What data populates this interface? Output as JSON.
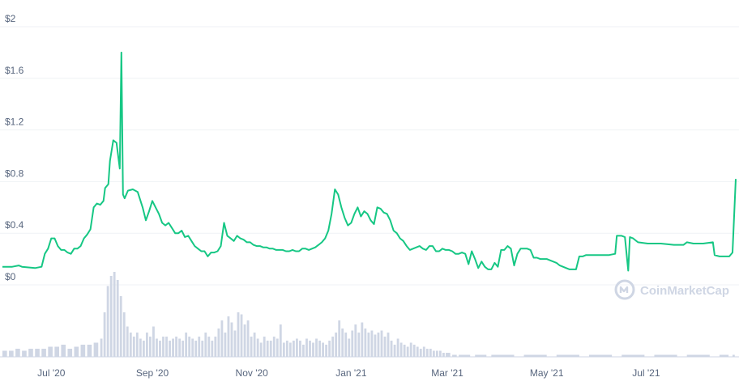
{
  "chart_data": {
    "type": "line",
    "y_ticks": [
      "$0",
      "$0.4",
      "$0.8",
      "$1.2",
      "$1.6",
      "$2"
    ],
    "ylim": [
      0,
      2
    ],
    "x_ticks": [
      {
        "label": "Jul '20",
        "day": 30
      },
      {
        "label": "Sep '20",
        "day": 92
      },
      {
        "label": "Nov '20",
        "day": 153
      },
      {
        "label": "Jan '21",
        "day": 214
      },
      {
        "label": "Mar '21",
        "day": 273
      },
      {
        "label": "May '21",
        "day": 334
      },
      {
        "label": "Jul '21",
        "day": 395
      }
    ],
    "xlim_days": [
      0,
      450
    ],
    "price_series": {
      "color": "#16c784",
      "points": [
        [
          0,
          0.14
        ],
        [
          6,
          0.14
        ],
        [
          10,
          0.15
        ],
        [
          12,
          0.14
        ],
        [
          20,
          0.13
        ],
        [
          24,
          0.14
        ],
        [
          26,
          0.24
        ],
        [
          28,
          0.28
        ],
        [
          30,
          0.36
        ],
        [
          32,
          0.36
        ],
        [
          34,
          0.3
        ],
        [
          36,
          0.27
        ],
        [
          38,
          0.27
        ],
        [
          40,
          0.25
        ],
        [
          42,
          0.24
        ],
        [
          44,
          0.28
        ],
        [
          46,
          0.28
        ],
        [
          48,
          0.3
        ],
        [
          50,
          0.36
        ],
        [
          52,
          0.39
        ],
        [
          54,
          0.43
        ],
        [
          56,
          0.6
        ],
        [
          58,
          0.63
        ],
        [
          60,
          0.62
        ],
        [
          62,
          0.65
        ],
        [
          63,
          0.75
        ],
        [
          65,
          0.78
        ],
        [
          66,
          0.96
        ],
        [
          68,
          1.12
        ],
        [
          70,
          1.1
        ],
        [
          72,
          0.9
        ],
        [
          73,
          1.8
        ],
        [
          74,
          0.7
        ],
        [
          75,
          0.67
        ],
        [
          77,
          0.73
        ],
        [
          80,
          0.74
        ],
        [
          83,
          0.72
        ],
        [
          86,
          0.6
        ],
        [
          88,
          0.5
        ],
        [
          90,
          0.57
        ],
        [
          92,
          0.65
        ],
        [
          94,
          0.6
        ],
        [
          96,
          0.55
        ],
        [
          98,
          0.48
        ],
        [
          100,
          0.46
        ],
        [
          102,
          0.48
        ],
        [
          104,
          0.44
        ],
        [
          106,
          0.4
        ],
        [
          108,
          0.4
        ],
        [
          110,
          0.42
        ],
        [
          112,
          0.37
        ],
        [
          114,
          0.38
        ],
        [
          116,
          0.34
        ],
        [
          118,
          0.3
        ],
        [
          120,
          0.28
        ],
        [
          122,
          0.26
        ],
        [
          124,
          0.26
        ],
        [
          126,
          0.22
        ],
        [
          128,
          0.25
        ],
        [
          130,
          0.25
        ],
        [
          132,
          0.26
        ],
        [
          134,
          0.3
        ],
        [
          136,
          0.48
        ],
        [
          138,
          0.38
        ],
        [
          140,
          0.36
        ],
        [
          142,
          0.34
        ],
        [
          144,
          0.38
        ],
        [
          146,
          0.36
        ],
        [
          148,
          0.35
        ],
        [
          150,
          0.33
        ],
        [
          152,
          0.33
        ],
        [
          154,
          0.31
        ],
        [
          156,
          0.3
        ],
        [
          158,
          0.3
        ],
        [
          160,
          0.29
        ],
        [
          162,
          0.29
        ],
        [
          164,
          0.28
        ],
        [
          166,
          0.28
        ],
        [
          168,
          0.27
        ],
        [
          170,
          0.27
        ],
        [
          172,
          0.27
        ],
        [
          174,
          0.26
        ],
        [
          176,
          0.26
        ],
        [
          178,
          0.27
        ],
        [
          180,
          0.26
        ],
        [
          182,
          0.26
        ],
        [
          184,
          0.28
        ],
        [
          186,
          0.28
        ],
        [
          188,
          0.27
        ],
        [
          190,
          0.28
        ],
        [
          192,
          0.29
        ],
        [
          194,
          0.31
        ],
        [
          196,
          0.33
        ],
        [
          198,
          0.36
        ],
        [
          200,
          0.42
        ],
        [
          202,
          0.55
        ],
        [
          204,
          0.74
        ],
        [
          206,
          0.7
        ],
        [
          208,
          0.6
        ],
        [
          210,
          0.52
        ],
        [
          212,
          0.46
        ],
        [
          214,
          0.48
        ],
        [
          216,
          0.55
        ],
        [
          218,
          0.6
        ],
        [
          220,
          0.53
        ],
        [
          222,
          0.57
        ],
        [
          224,
          0.55
        ],
        [
          226,
          0.5
        ],
        [
          228,
          0.47
        ],
        [
          230,
          0.6
        ],
        [
          232,
          0.59
        ],
        [
          234,
          0.56
        ],
        [
          236,
          0.55
        ],
        [
          238,
          0.5
        ],
        [
          240,
          0.42
        ],
        [
          242,
          0.4
        ],
        [
          244,
          0.36
        ],
        [
          246,
          0.34
        ],
        [
          248,
          0.3
        ],
        [
          250,
          0.27
        ],
        [
          252,
          0.28
        ],
        [
          254,
          0.29
        ],
        [
          256,
          0.3
        ],
        [
          258,
          0.28
        ],
        [
          260,
          0.27
        ],
        [
          262,
          0.3
        ],
        [
          264,
          0.3
        ],
        [
          266,
          0.26
        ],
        [
          268,
          0.26
        ],
        [
          270,
          0.28
        ],
        [
          272,
          0.27
        ],
        [
          274,
          0.27
        ],
        [
          276,
          0.26
        ],
        [
          278,
          0.24
        ],
        [
          280,
          0.24
        ],
        [
          282,
          0.25
        ],
        [
          284,
          0.24
        ],
        [
          286,
          0.16
        ],
        [
          288,
          0.26
        ],
        [
          290,
          0.2
        ],
        [
          292,
          0.13
        ],
        [
          294,
          0.18
        ],
        [
          296,
          0.14
        ],
        [
          298,
          0.12
        ],
        [
          300,
          0.12
        ],
        [
          302,
          0.17
        ],
        [
          304,
          0.14
        ],
        [
          306,
          0.27
        ],
        [
          308,
          0.27
        ],
        [
          310,
          0.3
        ],
        [
          312,
          0.28
        ],
        [
          314,
          0.15
        ],
        [
          316,
          0.24
        ],
        [
          318,
          0.28
        ],
        [
          320,
          0.28
        ],
        [
          322,
          0.28
        ],
        [
          324,
          0.27
        ],
        [
          326,
          0.21
        ],
        [
          328,
          0.21
        ],
        [
          330,
          0.2
        ],
        [
          332,
          0.2
        ],
        [
          334,
          0.2
        ],
        [
          336,
          0.19
        ],
        [
          338,
          0.18
        ],
        [
          340,
          0.17
        ],
        [
          342,
          0.15
        ],
        [
          344,
          0.14
        ],
        [
          346,
          0.13
        ],
        [
          348,
          0.12
        ],
        [
          350,
          0.12
        ],
        [
          352,
          0.12
        ],
        [
          354,
          0.22
        ],
        [
          356,
          0.22
        ],
        [
          358,
          0.23
        ],
        [
          360,
          0.23
        ],
        [
          364,
          0.23
        ],
        [
          368,
          0.23
        ],
        [
          372,
          0.23
        ],
        [
          376,
          0.24
        ],
        [
          377,
          0.38
        ],
        [
          380,
          0.38
        ],
        [
          382,
          0.37
        ],
        [
          384,
          0.11
        ],
        [
          385,
          0.37
        ],
        [
          387,
          0.36
        ],
        [
          390,
          0.33
        ],
        [
          396,
          0.32
        ],
        [
          404,
          0.32
        ],
        [
          412,
          0.31
        ],
        [
          418,
          0.31
        ],
        [
          420,
          0.33
        ],
        [
          424,
          0.32
        ],
        [
          430,
          0.32
        ],
        [
          436,
          0.33
        ],
        [
          437,
          0.23
        ],
        [
          440,
          0.22
        ],
        [
          444,
          0.22
        ],
        [
          446,
          0.22
        ],
        [
          448,
          0.25
        ],
        [
          450,
          0.82
        ]
      ]
    },
    "volume_series": {
      "color": "#cfd6e4",
      "x": [
        0,
        4,
        8,
        12,
        16,
        20,
        24,
        28,
        32,
        36,
        40,
        44,
        48,
        52,
        56,
        60,
        62,
        64,
        66,
        68,
        70,
        72,
        74,
        76,
        78,
        80,
        82,
        84,
        86,
        88,
        90,
        92,
        94,
        96,
        98,
        100,
        102,
        104,
        106,
        108,
        110,
        112,
        114,
        116,
        118,
        120,
        122,
        124,
        126,
        128,
        130,
        132,
        134,
        136,
        138,
        140,
        142,
        144,
        146,
        148,
        150,
        152,
        154,
        156,
        158,
        160,
        162,
        164,
        166,
        168,
        170,
        172,
        174,
        176,
        178,
        180,
        182,
        184,
        186,
        188,
        190,
        192,
        194,
        196,
        198,
        200,
        202,
        204,
        206,
        208,
        210,
        212,
        214,
        216,
        218,
        220,
        222,
        224,
        226,
        228,
        230,
        232,
        234,
        236,
        238,
        240,
        242,
        244,
        246,
        248,
        250,
        252,
        254,
        256,
        258,
        260,
        262,
        264,
        266,
        268,
        270,
        272,
        276,
        280,
        290,
        300,
        320,
        340,
        360,
        380,
        400,
        420,
        440,
        448
      ],
      "v": [
        0.03,
        0.03,
        0.04,
        0.03,
        0.04,
        0.04,
        0.04,
        0.05,
        0.05,
        0.06,
        0.04,
        0.05,
        0.06,
        0.06,
        0.07,
        0.09,
        0.22,
        0.35,
        0.4,
        0.42,
        0.38,
        0.3,
        0.22,
        0.15,
        0.12,
        0.1,
        0.12,
        0.09,
        0.08,
        0.12,
        0.1,
        0.15,
        0.09,
        0.08,
        0.1,
        0.1,
        0.08,
        0.09,
        0.1,
        0.09,
        0.08,
        0.12,
        0.1,
        0.09,
        0.08,
        0.1,
        0.08,
        0.12,
        0.1,
        0.08,
        0.1,
        0.14,
        0.18,
        0.12,
        0.2,
        0.17,
        0.13,
        0.22,
        0.21,
        0.16,
        0.18,
        0.1,
        0.12,
        0.09,
        0.07,
        0.1,
        0.08,
        0.08,
        0.1,
        0.09,
        0.16,
        0.07,
        0.08,
        0.07,
        0.08,
        0.09,
        0.08,
        0.06,
        0.09,
        0.08,
        0.07,
        0.09,
        0.08,
        0.07,
        0.06,
        0.08,
        0.1,
        0.12,
        0.18,
        0.14,
        0.12,
        0.09,
        0.13,
        0.16,
        0.12,
        0.17,
        0.14,
        0.12,
        0.13,
        0.11,
        0.12,
        0.13,
        0.1,
        0.12,
        0.08,
        0.06,
        0.09,
        0.07,
        0.06,
        0.05,
        0.07,
        0.06,
        0.05,
        0.04,
        0.05,
        0.04,
        0.04,
        0.03,
        0.03,
        0.03,
        0.02,
        0.02,
        0.01,
        0.01,
        0.01,
        0.01,
        0.01,
        0.01,
        0.01,
        0.01,
        0.01,
        0.01,
        0.01,
        0.01
      ]
    }
  },
  "watermark": {
    "text": "CoinMarketCap",
    "icon": "coinmarketcap-logo-icon",
    "color": "#cfd6e4"
  }
}
